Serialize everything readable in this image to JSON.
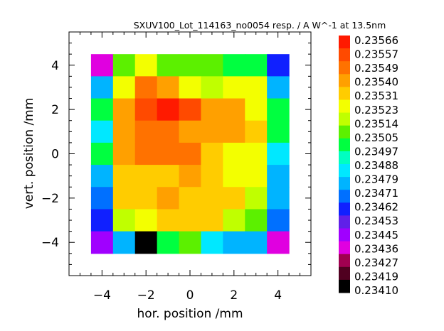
{
  "chart_data": {
    "type": "heatmap",
    "title": "SXUV100_Lot_114163_no0054   resp. / A W^-1 at 13.5nm",
    "xlabel": "hor. position /mm",
    "ylabel": "vert. position /mm",
    "xlim": [
      -5.5,
      5.5
    ],
    "ylim": [
      -5.5,
      5.5
    ],
    "x_ticks": [
      "-4",
      "-2",
      "0",
      "2",
      "4"
    ],
    "y_ticks": [
      "4",
      "2",
      "0",
      "-2",
      "-4"
    ],
    "x_tick_values": [
      -4,
      -2,
      0,
      2,
      4
    ],
    "y_tick_values": [
      4,
      2,
      0,
      -2,
      -4
    ],
    "grid": false,
    "legend_position": "right",
    "color_scale": {
      "min": 0.2341,
      "max": 0.23566,
      "labels": [
        "0.23566",
        "0.23557",
        "0.23549",
        "0.23540",
        "0.23531",
        "0.23523",
        "0.23514",
        "0.23505",
        "0.23497",
        "0.23488",
        "0.23479",
        "0.23471",
        "0.23462",
        "0.23453",
        "0.23445",
        "0.23436",
        "0.23427",
        "0.23419",
        "0.23410"
      ],
      "colors": [
        "#ff1a00",
        "#ff4a00",
        "#ff7200",
        "#ffa000",
        "#ffcc00",
        "#f3ff00",
        "#c0ff00",
        "#5cf000",
        "#00ff40",
        "#00ffc0",
        "#00e8ff",
        "#00b4ff",
        "#0070ff",
        "#1020ff",
        "#6020e8",
        "#a000ff",
        "#e000e0",
        "#a00050",
        "#500020",
        "#000000"
      ]
    },
    "x_centers": [
      -4,
      -3,
      -2,
      -1,
      0,
      1,
      2,
      3,
      4
    ],
    "y_centers": [
      4,
      3,
      2,
      1,
      0,
      -1,
      -2,
      -3,
      -4
    ],
    "values": [
      [
        0.23436,
        0.23512,
        0.23527,
        0.23512,
        0.23512,
        0.23505,
        0.23497,
        0.23497,
        0.23462
      ],
      [
        0.23479,
        0.23527,
        0.23553,
        0.2354,
        0.23527,
        0.23519,
        0.23523,
        0.23523,
        0.23479
      ],
      [
        0.23497,
        0.2354,
        0.23556,
        0.23565,
        0.2356,
        0.23545,
        0.2354,
        0.23523,
        0.23497
      ],
      [
        0.23484,
        0.23545,
        0.23553,
        0.23548,
        0.23543,
        0.23538,
        0.23538,
        0.23531,
        0.23497
      ],
      [
        0.23497,
        0.2354,
        0.23548,
        0.2355,
        0.23546,
        0.23534,
        0.23527,
        0.23523,
        0.23488
      ],
      [
        0.23479,
        0.23536,
        0.23536,
        0.23531,
        0.2354,
        0.23536,
        0.23529,
        0.23527,
        0.23479
      ],
      [
        0.23471,
        0.23531,
        0.23536,
        0.2354,
        0.23531,
        0.23536,
        0.23531,
        0.23518,
        0.23479
      ],
      [
        0.23462,
        0.23514,
        0.23527,
        0.23531,
        0.23531,
        0.23531,
        0.23518,
        0.23512,
        0.23471
      ],
      [
        0.23445,
        0.23479,
        0.2341,
        0.23497,
        0.23505,
        0.23488,
        0.23479,
        0.23479,
        0.23436
      ]
    ]
  }
}
